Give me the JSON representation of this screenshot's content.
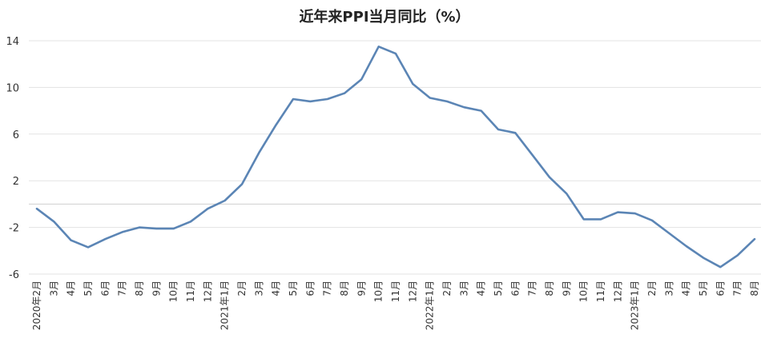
{
  "chart_data": {
    "type": "line",
    "title": "近年来PPI当月同比（%）",
    "xlabel": "",
    "ylabel": "",
    "ylim": [
      -6,
      14
    ],
    "yticks": [
      14,
      10,
      6,
      2,
      -2,
      -6
    ],
    "grid": true,
    "legend": "none",
    "colors": {
      "series": "#5b85b5",
      "grid": "#e3e3e3"
    },
    "categories": [
      "2020年2月",
      "3月",
      "4月",
      "5月",
      "6月",
      "7月",
      "8月",
      "9月",
      "10月",
      "11月",
      "12月",
      "2021年1月",
      "2月",
      "3月",
      "4月",
      "5月",
      "6月",
      "7月",
      "8月",
      "9月",
      "10月",
      "11月",
      "12月",
      "2022年1月",
      "2月",
      "3月",
      "4月",
      "5月",
      "6月",
      "7月",
      "8月",
      "9月",
      "10月",
      "11月",
      "12月",
      "2023年1月",
      "2月",
      "3月",
      "4月",
      "5月",
      "6月",
      "7月",
      "8月"
    ],
    "series": [
      {
        "values": [
          -0.4,
          -1.5,
          -3.1,
          -3.7,
          -3.0,
          -2.4,
          -2.0,
          -2.1,
          -2.1,
          -1.5,
          -0.4,
          0.3,
          1.7,
          4.4,
          6.8,
          9.0,
          8.8,
          9.0,
          9.5,
          10.7,
          13.5,
          12.9,
          10.3,
          9.1,
          8.8,
          8.3,
          8.0,
          6.4,
          6.1,
          4.2,
          2.3,
          0.9,
          -1.3,
          -1.3,
          -0.7,
          -0.8,
          -1.4,
          -2.5,
          -3.6,
          -4.6,
          -5.4,
          -4.4,
          -3.0
        ]
      }
    ]
  }
}
